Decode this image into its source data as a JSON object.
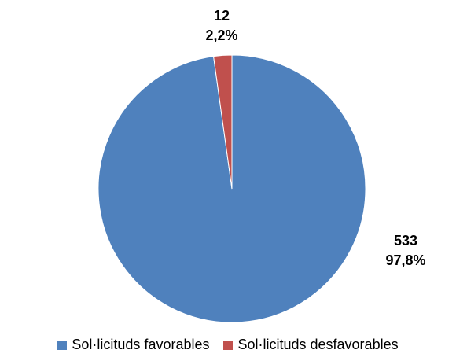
{
  "chart_data": {
    "type": "pie",
    "categories": [
      "Sol·licituds favorables",
      "Sol·licituds desfavorables"
    ],
    "values": [
      533,
      12
    ],
    "percent_labels": [
      "97,8%",
      "2,2%"
    ],
    "value_labels": [
      "533",
      "12"
    ],
    "colors": [
      "#4F81BD",
      "#C0504D"
    ],
    "legend_position": "bottom",
    "start_angle_deg": 0,
    "direction": "clockwise"
  }
}
